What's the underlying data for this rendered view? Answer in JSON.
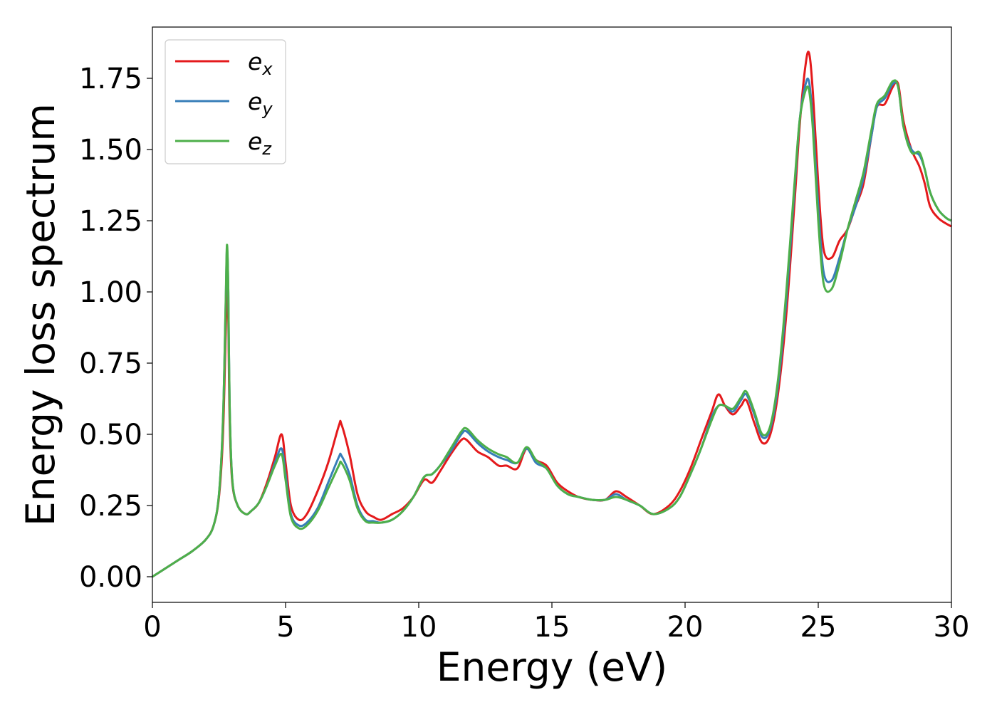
{
  "chart_data": {
    "type": "line",
    "title": "",
    "xlabel": "Energy (eV)",
    "ylabel": "Energy loss spectrum",
    "xlim": [
      0,
      30
    ],
    "ylim": [
      -0.09,
      1.93
    ],
    "xticks": [
      "0",
      "5",
      "10",
      "15",
      "20",
      "25",
      "30"
    ],
    "yticks": [
      "0.00",
      "0.25",
      "0.50",
      "0.75",
      "1.00",
      "1.25",
      "1.50",
      "1.75"
    ],
    "grid": false,
    "legend_position": "top-left",
    "series": [
      {
        "name": "e",
        "subscript": "x",
        "color": "#e41a1c",
        "x": [
          0,
          0.5,
          1.0,
          1.5,
          2.0,
          2.3,
          2.5,
          2.65,
          2.75,
          2.8,
          2.85,
          2.9,
          3.0,
          3.2,
          3.5,
          3.7,
          4.0,
          4.3,
          4.6,
          4.85,
          5.0,
          5.2,
          5.5,
          5.8,
          6.2,
          6.6,
          7.0,
          7.1,
          7.4,
          7.7,
          8.0,
          8.3,
          8.6,
          9.0,
          9.4,
          9.8,
          10.2,
          10.5,
          10.8,
          11.2,
          11.6,
          11.8,
          12.2,
          12.6,
          13.0,
          13.3,
          13.7,
          14.05,
          14.4,
          14.8,
          15.2,
          15.6,
          16.0,
          16.5,
          17.0,
          17.4,
          17.8,
          18.3,
          18.8,
          19.4,
          19.8,
          20.2,
          20.6,
          21.0,
          21.25,
          21.5,
          21.8,
          22.1,
          22.3,
          22.6,
          22.9,
          23.2,
          23.5,
          23.8,
          24.1,
          24.3,
          24.5,
          24.65,
          24.8,
          25.0,
          25.2,
          25.5,
          25.8,
          26.1,
          26.4,
          26.7,
          27.0,
          27.2,
          27.5,
          27.8,
          28.0,
          28.2,
          28.5,
          28.8,
          29.0,
          29.2,
          29.5,
          29.8,
          30.0
        ],
        "y": [
          0.0,
          0.03,
          0.06,
          0.09,
          0.13,
          0.18,
          0.28,
          0.5,
          0.85,
          1.02,
          0.9,
          0.55,
          0.33,
          0.25,
          0.22,
          0.23,
          0.26,
          0.33,
          0.42,
          0.5,
          0.4,
          0.25,
          0.2,
          0.22,
          0.3,
          0.4,
          0.53,
          0.535,
          0.43,
          0.29,
          0.23,
          0.21,
          0.2,
          0.22,
          0.24,
          0.28,
          0.34,
          0.33,
          0.37,
          0.43,
          0.48,
          0.48,
          0.44,
          0.42,
          0.39,
          0.39,
          0.38,
          0.45,
          0.41,
          0.39,
          0.33,
          0.3,
          0.28,
          0.27,
          0.27,
          0.3,
          0.28,
          0.25,
          0.22,
          0.25,
          0.3,
          0.38,
          0.48,
          0.58,
          0.64,
          0.6,
          0.57,
          0.6,
          0.62,
          0.54,
          0.47,
          0.5,
          0.65,
          0.92,
          1.3,
          1.58,
          1.78,
          1.84,
          1.7,
          1.38,
          1.15,
          1.12,
          1.18,
          1.22,
          1.3,
          1.38,
          1.55,
          1.65,
          1.66,
          1.72,
          1.73,
          1.6,
          1.5,
          1.44,
          1.38,
          1.3,
          1.26,
          1.24,
          1.23
        ]
      },
      {
        "name": "e",
        "subscript": "y",
        "color": "#377eb8",
        "x": [
          0,
          0.5,
          1.0,
          1.5,
          2.0,
          2.3,
          2.5,
          2.65,
          2.75,
          2.8,
          2.85,
          2.9,
          3.0,
          3.2,
          3.5,
          3.7,
          4.0,
          4.3,
          4.6,
          4.85,
          5.0,
          5.2,
          5.5,
          5.8,
          6.2,
          6.6,
          7.0,
          7.1,
          7.4,
          7.7,
          8.0,
          8.3,
          8.6,
          9.0,
          9.4,
          9.8,
          10.2,
          10.5,
          10.8,
          11.2,
          11.6,
          11.8,
          12.2,
          12.6,
          13.0,
          13.3,
          13.7,
          14.05,
          14.4,
          14.8,
          15.2,
          15.6,
          16.0,
          16.5,
          17.0,
          17.4,
          17.8,
          18.3,
          18.8,
          19.4,
          19.8,
          20.2,
          20.6,
          21.0,
          21.25,
          21.5,
          21.8,
          22.1,
          22.3,
          22.6,
          22.9,
          23.2,
          23.5,
          23.8,
          24.1,
          24.3,
          24.5,
          24.65,
          24.8,
          25.0,
          25.2,
          25.5,
          25.8,
          26.1,
          26.4,
          26.7,
          27.0,
          27.2,
          27.5,
          27.8,
          28.0,
          28.2,
          28.5,
          28.8,
          29.0,
          29.2,
          29.5,
          29.8,
          30.0
        ],
        "y": [
          0.0,
          0.03,
          0.06,
          0.09,
          0.13,
          0.18,
          0.29,
          0.55,
          0.95,
          1.15,
          1.0,
          0.6,
          0.34,
          0.25,
          0.22,
          0.23,
          0.26,
          0.32,
          0.4,
          0.45,
          0.36,
          0.22,
          0.18,
          0.19,
          0.24,
          0.33,
          0.42,
          0.425,
          0.36,
          0.25,
          0.2,
          0.195,
          0.19,
          0.2,
          0.23,
          0.28,
          0.35,
          0.36,
          0.39,
          0.44,
          0.5,
          0.51,
          0.47,
          0.44,
          0.42,
          0.41,
          0.4,
          0.45,
          0.4,
          0.38,
          0.32,
          0.29,
          0.28,
          0.27,
          0.27,
          0.29,
          0.27,
          0.25,
          0.22,
          0.24,
          0.28,
          0.36,
          0.45,
          0.56,
          0.6,
          0.6,
          0.58,
          0.62,
          0.64,
          0.57,
          0.49,
          0.52,
          0.68,
          0.97,
          1.35,
          1.6,
          1.72,
          1.74,
          1.6,
          1.3,
          1.07,
          1.04,
          1.12,
          1.22,
          1.3,
          1.4,
          1.55,
          1.65,
          1.68,
          1.73,
          1.72,
          1.58,
          1.5,
          1.48,
          1.43,
          1.35,
          1.29,
          1.26,
          1.25
        ]
      },
      {
        "name": "e",
        "subscript": "z",
        "color": "#4daf4a",
        "x": [
          0,
          0.5,
          1.0,
          1.5,
          2.0,
          2.3,
          2.5,
          2.65,
          2.75,
          2.8,
          2.85,
          2.9,
          3.0,
          3.2,
          3.5,
          3.7,
          4.0,
          4.3,
          4.6,
          4.85,
          5.0,
          5.2,
          5.5,
          5.8,
          6.2,
          6.6,
          7.0,
          7.1,
          7.4,
          7.7,
          8.0,
          8.3,
          8.6,
          9.0,
          9.4,
          9.8,
          10.2,
          10.5,
          10.8,
          11.2,
          11.6,
          11.8,
          12.2,
          12.6,
          13.0,
          13.3,
          13.7,
          14.05,
          14.4,
          14.8,
          15.2,
          15.6,
          16.0,
          16.5,
          17.0,
          17.4,
          17.8,
          18.3,
          18.8,
          19.4,
          19.8,
          20.2,
          20.6,
          21.0,
          21.25,
          21.5,
          21.8,
          22.1,
          22.3,
          22.6,
          22.9,
          23.2,
          23.5,
          23.8,
          24.1,
          24.3,
          24.5,
          24.65,
          24.8,
          25.0,
          25.2,
          25.5,
          25.8,
          26.1,
          26.4,
          26.7,
          27.0,
          27.2,
          27.5,
          27.8,
          28.0,
          28.2,
          28.5,
          28.8,
          29.0,
          29.2,
          29.5,
          29.8,
          30.0
        ],
        "y": [
          0.0,
          0.03,
          0.06,
          0.09,
          0.13,
          0.18,
          0.29,
          0.55,
          0.96,
          1.165,
          1.0,
          0.6,
          0.34,
          0.25,
          0.22,
          0.23,
          0.26,
          0.32,
          0.39,
          0.43,
          0.34,
          0.21,
          0.17,
          0.18,
          0.23,
          0.31,
          0.39,
          0.4,
          0.34,
          0.24,
          0.195,
          0.19,
          0.19,
          0.2,
          0.23,
          0.28,
          0.35,
          0.36,
          0.39,
          0.45,
          0.51,
          0.52,
          0.48,
          0.45,
          0.43,
          0.42,
          0.4,
          0.455,
          0.41,
          0.38,
          0.32,
          0.29,
          0.28,
          0.27,
          0.27,
          0.28,
          0.27,
          0.25,
          0.22,
          0.24,
          0.28,
          0.36,
          0.45,
          0.55,
          0.6,
          0.6,
          0.59,
          0.63,
          0.65,
          0.58,
          0.5,
          0.53,
          0.7,
          1.0,
          1.37,
          1.6,
          1.7,
          1.71,
          1.57,
          1.25,
          1.03,
          1.01,
          1.1,
          1.22,
          1.32,
          1.42,
          1.57,
          1.66,
          1.69,
          1.74,
          1.72,
          1.58,
          1.49,
          1.49,
          1.43,
          1.35,
          1.29,
          1.26,
          1.25
        ]
      }
    ]
  }
}
